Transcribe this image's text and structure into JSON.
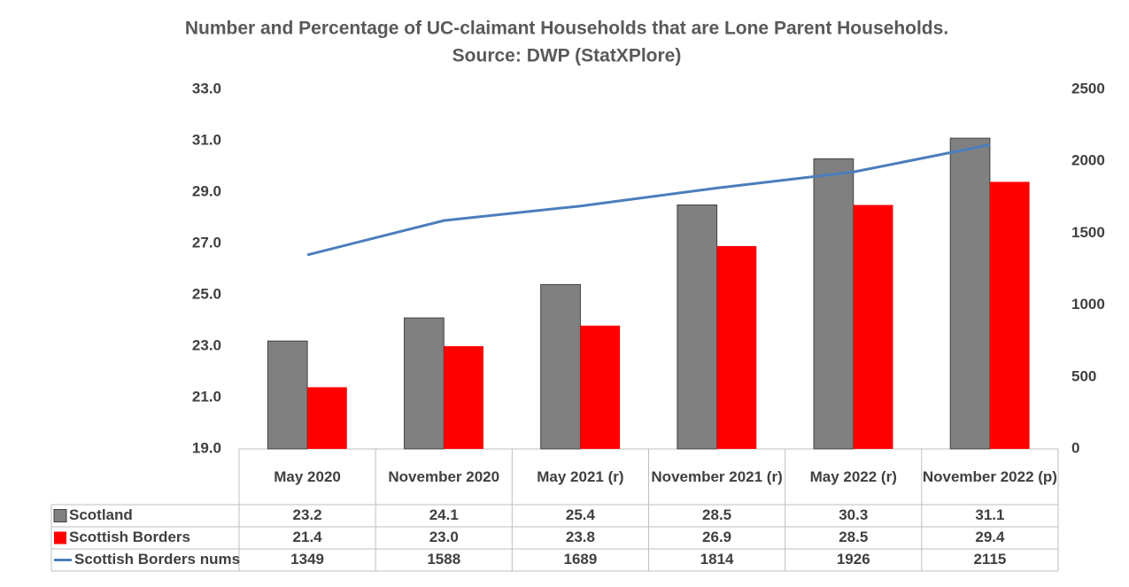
{
  "chart_data": {
    "type": "bar",
    "title": "Number and Percentage of UC-claimant Households that are Lone Parent Households.",
    "subtitle": "Source: DWP (StatXPlore)",
    "categories": [
      "May 2020",
      "November 2020",
      "May 2021 (r)",
      "November 2021 (r)",
      "May 2022 (r)",
      "November 2022 (p)"
    ],
    "series": [
      {
        "name": "Scotland",
        "type": "bar",
        "color": "#808080",
        "values": [
          23.2,
          24.1,
          25.4,
          28.5,
          30.3,
          31.1
        ],
        "value_labels": [
          "23.2",
          "24.1",
          "25.4",
          "28.5",
          "30.3",
          "31.1"
        ]
      },
      {
        "name": "Scottish Borders",
        "type": "bar",
        "color": "#ff0000",
        "values": [
          21.4,
          23.0,
          23.8,
          26.9,
          28.5,
          29.4
        ],
        "value_labels": [
          "21.4",
          "23.0",
          "23.8",
          "26.9",
          "28.5",
          "29.4"
        ]
      },
      {
        "name": "Scottish Borders nums",
        "type": "line",
        "axis": "y2",
        "color": "#4a7ebb",
        "values": [
          1349,
          1588,
          1689,
          1814,
          1926,
          2115
        ]
      }
    ],
    "ylim": [
      19,
      33
    ],
    "yticks": [
      {
        "value": 19,
        "label": "19.0"
      },
      {
        "value": 21,
        "label": "21.0"
      },
      {
        "value": 23,
        "label": "23.0"
      },
      {
        "value": 25,
        "label": "25.0"
      },
      {
        "value": 27,
        "label": "27.0"
      },
      {
        "value": 29,
        "label": "29.0"
      },
      {
        "value": 31,
        "label": "31.0"
      },
      {
        "value": 33,
        "label": "33.0"
      }
    ],
    "y2lim": [
      0,
      2500
    ],
    "y2ticks": [
      0,
      500,
      1000,
      1500,
      2000,
      2500
    ],
    "grid": false
  }
}
